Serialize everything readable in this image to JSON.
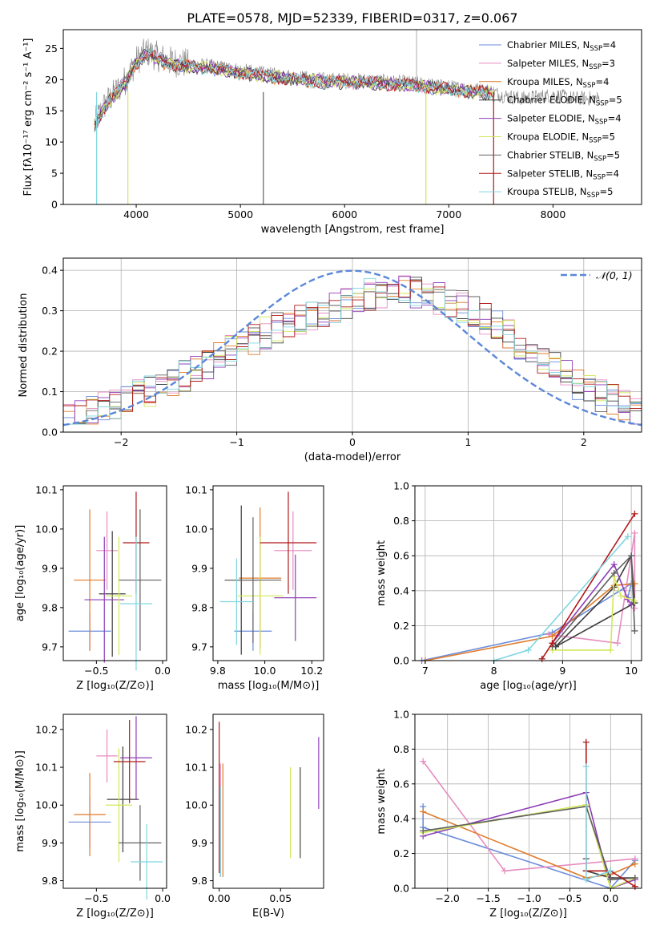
{
  "figure_title": "PLATE=0578, MJD=52339, FIBERID=0317, z=0.067",
  "model_colors": [
    "#6b8cdc",
    "#e68cc0",
    "#e07b2a",
    "#3d3d3d",
    "#8e3fb8",
    "#d2e85a",
    "#606060",
    "#b01818",
    "#7fd6e0"
  ],
  "chart_data": [
    {
      "id": "spectrum",
      "type": "line",
      "title": "PLATE=0578, MJD=52339, FIBERID=0317, z=0.067",
      "xlabel": "wavelength [Angstrom, rest frame]",
      "ylabel": "Flux [fλ10⁻¹⁷ erg cm⁻² s⁻¹ A⁻¹]",
      "xlim": [
        3300,
        8850
      ],
      "ylim": [
        0,
        28
      ],
      "xticks": [
        4000,
        5000,
        6000,
        7000,
        8000
      ],
      "yticks": [
        0,
        5,
        10,
        15,
        20,
        25
      ],
      "grid": false,
      "legend_position": "top-right",
      "observed_color": "#808080",
      "observed_anchors": {
        "x": [
          3600,
          3700,
          3800,
          3900,
          4000,
          4100,
          4300,
          4500,
          4800,
          5000,
          5200,
          5500,
          5800,
          6000,
          6300,
          6600,
          6800,
          7000,
          7200,
          7400,
          7500,
          7700,
          8000,
          8200,
          8450
        ],
        "y": [
          13,
          16,
          18,
          20,
          23,
          24.5,
          23,
          22.5,
          22,
          21.5,
          21,
          20.5,
          20,
          20,
          19.8,
          19.5,
          19.2,
          18.8,
          18.5,
          18.2,
          17.5,
          17,
          17.5,
          17,
          17
        ]
      },
      "series": [
        {
          "name": "Chabrier MILES, N_SSP=4",
          "label_main": "Chabrier MILES, N",
          "label_sub": "SSP",
          "label_tail": "=4",
          "color": "#6b8cdc"
        },
        {
          "name": "Salpeter MILES, N_SSP=3",
          "label_main": "Salpeter MILES, N",
          "label_sub": "SSP",
          "label_tail": "=3",
          "color": "#e68cc0"
        },
        {
          "name": "Kroupa MILES, N_SSP=4",
          "label_main": "Kroupa MILES, N",
          "label_sub": "SSP",
          "label_tail": "=4",
          "color": "#e07b2a"
        },
        {
          "name": "Chabrier ELODIE, N_SSP=5",
          "label_main": "Chabrier ELODIE, N",
          "label_sub": "SSP",
          "label_tail": "=5",
          "color": "#3d3d3d"
        },
        {
          "name": "Salpeter ELODIE, N_SSP=4",
          "label_main": "Salpeter ELODIE, N",
          "label_sub": "SSP",
          "label_tail": "=4",
          "color": "#8e3fb8"
        },
        {
          "name": "Kroupa ELODIE, N_SSP=5",
          "label_main": "Kroupa ELODIE, N",
          "label_sub": "SSP",
          "label_tail": "=5",
          "color": "#d2e85a"
        },
        {
          "name": "Chabrier STELIB, N_SSP=5",
          "label_main": "Chabrier STELIB, N",
          "label_sub": "SSP",
          "label_tail": "=5",
          "color": "#606060"
        },
        {
          "name": "Salpeter STELIB, N_SSP=4",
          "label_main": "Salpeter STELIB, N",
          "label_sub": "SSP",
          "label_tail": "=4",
          "color": "#b01818"
        },
        {
          "name": "Kroupa STELIB, N_SSP=5",
          "label_main": "Kroupa STELIB, N",
          "label_sub": "SSP",
          "label_tail": "=5",
          "color": "#7fd6e0"
        }
      ]
    },
    {
      "id": "residuals",
      "type": "histogram",
      "xlabel": "(data-model)/error",
      "ylabel": "Normed distribution",
      "xlim": [
        -2.5,
        2.5
      ],
      "ylim": [
        0,
        0.43
      ],
      "xticks": [
        -2,
        -1,
        0,
        1,
        2
      ],
      "yticks": [
        0.0,
        0.1,
        0.2,
        0.3,
        0.4
      ],
      "grid": true,
      "bins": {
        "start": -2.5,
        "width": 0.1,
        "count": 50
      },
      "envelope": [
        0.035,
        0.04,
        0.05,
        0.06,
        0.07,
        0.08,
        0.09,
        0.1,
        0.11,
        0.12,
        0.14,
        0.155,
        0.17,
        0.185,
        0.2,
        0.215,
        0.23,
        0.245,
        0.26,
        0.27,
        0.28,
        0.29,
        0.3,
        0.31,
        0.32,
        0.33,
        0.34,
        0.345,
        0.35,
        0.35,
        0.345,
        0.34,
        0.33,
        0.32,
        0.31,
        0.3,
        0.28,
        0.26,
        0.24,
        0.22,
        0.2,
        0.18,
        0.16,
        0.14,
        0.12,
        0.1,
        0.09,
        0.08,
        0.07,
        0.055
      ],
      "legend": {
        "position": "top-right",
        "label": "𝒩(0, 1)",
        "color": "#5b87d8"
      },
      "normal_curve": {
        "mean": 0,
        "sigma": 1,
        "color": "#5b87d8"
      }
    },
    {
      "id": "age_vs_Z",
      "type": "errorbar",
      "xlabel": "Z [log₁₀(Z/Z⊙)]",
      "ylabel": "age  [log₁₀(age/yr)]",
      "xlim": [
        -0.75,
        0.03
      ],
      "ylim": [
        9.665,
        10.11
      ],
      "xticks": [
        -0.5,
        0.0
      ],
      "yticks": [
        9.7,
        9.8,
        9.9,
        10.0,
        10.1
      ],
      "points": [
        {
          "x": -0.55,
          "y": 9.74,
          "xerr": 0.16,
          "yerr": 0.05
        },
        {
          "x": -0.42,
          "y": 9.945,
          "xerr": 0.08,
          "yerr": 0.1
        },
        {
          "x": -0.55,
          "y": 9.87,
          "xerr": 0.12,
          "yerr": 0.18
        },
        {
          "x": -0.38,
          "y": 9.835,
          "xerr": 0.1,
          "yerr": 0.16
        },
        {
          "x": -0.44,
          "y": 9.82,
          "xerr": 0.15,
          "yerr": 0.16
        },
        {
          "x": -0.33,
          "y": 9.83,
          "xerr": 0.1,
          "yerr": 0.15
        },
        {
          "x": -0.17,
          "y": 9.87,
          "xerr": 0.16,
          "yerr": 0.18
        },
        {
          "x": -0.2,
          "y": 9.965,
          "xerr": 0.1,
          "yerr": 0.13
        },
        {
          "x": -0.2,
          "y": 9.81,
          "xerr": 0.12,
          "yerr": 0.17
        }
      ]
    },
    {
      "id": "age_vs_mass",
      "type": "errorbar",
      "xlabel": "mass [log₁₀(M/M⊙)]",
      "ylabel": "",
      "xlim": [
        9.78,
        10.25
      ],
      "ylim": [
        9.665,
        10.11
      ],
      "xticks": [
        9.8,
        10.0,
        10.2
      ],
      "yticks": [
        9.7,
        9.8,
        9.9,
        10.0,
        10.1
      ],
      "points": [
        {
          "x": 9.95,
          "y": 9.74,
          "xerr": 0.08,
          "yerr": 0.05
        },
        {
          "x": 10.12,
          "y": 9.945,
          "xerr": 0.08,
          "yerr": 0.1
        },
        {
          "x": 9.98,
          "y": 9.875,
          "xerr": 0.09,
          "yerr": 0.18
        },
        {
          "x": 9.9,
          "y": 9.87,
          "xerr": 0.07,
          "yerr": 0.19
        },
        {
          "x": 10.13,
          "y": 9.825,
          "xerr": 0.09,
          "yerr": 0.11
        },
        {
          "x": 9.98,
          "y": 9.83,
          "xerr": 0.1,
          "yerr": 0.15
        },
        {
          "x": 9.95,
          "y": 9.87,
          "xerr": 0.12,
          "yerr": 0.16
        },
        {
          "x": 10.1,
          "y": 9.965,
          "xerr": 0.12,
          "yerr": 0.13
        },
        {
          "x": 9.88,
          "y": 9.815,
          "xerr": 0.07,
          "yerr": 0.11
        }
      ]
    },
    {
      "id": "weight_vs_age",
      "type": "line",
      "xlabel": "age  [log₁₀(age/yr)]",
      "ylabel": "mass weight",
      "xlim": [
        6.85,
        10.15
      ],
      "ylim": [
        0,
        1
      ],
      "xticks": [
        7,
        8,
        9,
        10
      ],
      "yticks": [
        0.0,
        0.2,
        0.4,
        0.6,
        0.8,
        1.0
      ],
      "grid": true,
      "series": [
        {
          "x": [
            6.95,
            8.85,
            10.0,
            9.95
          ],
          "y": [
            0.0,
            0.16,
            0.44,
            0.36
          ]
        },
        {
          "x": [
            8.8,
            9.8,
            10.05,
            10.05
          ],
          "y": [
            0.15,
            0.1,
            0.73,
            0.3
          ]
        },
        {
          "x": [
            7.0,
            8.85,
            9.75,
            10.05
          ],
          "y": [
            0.0,
            0.14,
            0.43,
            0.44
          ]
        },
        {
          "x": [
            8.9,
            9.75,
            10.0,
            10.05,
            8.9
          ],
          "y": [
            0.08,
            0.42,
            0.6,
            0.33,
            0.08
          ]
        },
        {
          "x": [
            8.85,
            9.75,
            9.95,
            10.0
          ],
          "y": [
            0.1,
            0.55,
            0.35,
            0.32
          ]
        },
        {
          "x": [
            8.85,
            9.7,
            9.75,
            9.85,
            10.05
          ],
          "y": [
            0.06,
            0.06,
            0.48,
            0.37,
            0.34
          ]
        },
        {
          "x": [
            8.85,
            9.75,
            10.0,
            10.05
          ],
          "y": [
            0.08,
            0.5,
            0.6,
            0.17
          ]
        },
        {
          "x": [
            8.7,
            8.85,
            10.05
          ],
          "y": [
            0.01,
            0.1,
            0.84
          ]
        },
        {
          "x": [
            8.0,
            8.5,
            9.95
          ],
          "y": [
            0.0,
            0.06,
            0.71
          ]
        }
      ]
    },
    {
      "id": "mass_vs_Z",
      "type": "errorbar",
      "xlabel": "Z [log₁₀(Z/Z⊙)]",
      "ylabel": "mass [log₁₀(M/M⊙)]",
      "xlim": [
        -0.75,
        0.03
      ],
      "ylim": [
        9.78,
        10.24
      ],
      "xticks": [
        -0.5,
        0.0
      ],
      "yticks": [
        9.8,
        9.9,
        10.0,
        10.1,
        10.2
      ],
      "points": [
        {
          "x": -0.55,
          "y": 9.955,
          "xerr": 0.16,
          "yerr": 0.07
        },
        {
          "x": -0.42,
          "y": 10.13,
          "xerr": 0.08,
          "yerr": 0.07
        },
        {
          "x": -0.55,
          "y": 9.975,
          "xerr": 0.12,
          "yerr": 0.11
        },
        {
          "x": -0.3,
          "y": 10.015,
          "xerr": 0.12,
          "yerr": 0.14
        },
        {
          "x": -0.2,
          "y": 10.125,
          "xerr": 0.12,
          "yerr": 0.11
        },
        {
          "x": -0.33,
          "y": 10.0,
          "xerr": 0.1,
          "yerr": 0.15
        },
        {
          "x": -0.17,
          "y": 9.9,
          "xerr": 0.16,
          "yerr": 0.1
        },
        {
          "x": -0.25,
          "y": 10.115,
          "xerr": 0.12,
          "yerr": 0.11
        },
        {
          "x": -0.12,
          "y": 9.85,
          "xerr": 0.12,
          "yerr": 0.1
        }
      ]
    },
    {
      "id": "mass_vs_ebv",
      "type": "errorbar",
      "xlabel": "E(B-V)",
      "ylabel": "",
      "xlim": [
        -0.005,
        0.085
      ],
      "ylim": [
        9.78,
        10.24
      ],
      "xticks": [
        0.0,
        0.05
      ],
      "yticks": [
        9.8,
        9.9,
        10.0,
        10.1,
        10.2
      ],
      "points": [
        {
          "x": 0.001,
          "y": 9.93,
          "xerr": 0,
          "yerr": 0.12
        },
        {
          "x": 0.001,
          "y": 10.0,
          "xerr": 0,
          "yerr": 0.11
        },
        {
          "x": 0.003,
          "y": 9.96,
          "xerr": 0,
          "yerr": 0.15
        },
        {
          "x": 0.066,
          "y": 9.98,
          "xerr": 0,
          "yerr": 0.12
        },
        {
          "x": 0.081,
          "y": 10.085,
          "xerr": 0,
          "yerr": 0.095
        },
        {
          "x": 0.058,
          "y": 9.98,
          "xerr": 0,
          "yerr": 0.12
        },
        {
          "x": 0.066,
          "y": 9.98,
          "xerr": 0,
          "yerr": 0.12
        },
        {
          "x": 0.0,
          "y": 10.02,
          "xerr": 0,
          "yerr": 0.2
        },
        {
          "x": 0.001,
          "y": 9.93,
          "xerr": 0,
          "yerr": 0.12
        }
      ]
    },
    {
      "id": "weight_vs_Z",
      "type": "line",
      "xlabel": "Z [log₁₀(Z/Z⊙)]",
      "ylabel": "mass weight",
      "xlim": [
        -2.4,
        0.38
      ],
      "ylim": [
        0,
        1
      ],
      "xticks": [
        -2.0,
        -1.5,
        -1.0,
        -0.5,
        0.0
      ],
      "yticks": [
        0.0,
        0.2,
        0.4,
        0.6,
        0.8,
        1.0
      ],
      "grid": true,
      "series": [
        {
          "x": [
            -2.3,
            -2.3,
            0.0,
            0.3
          ],
          "y": [
            0.47,
            0.35,
            0.0,
            0.16
          ]
        },
        {
          "x": [
            -2.3,
            -1.3,
            0.3
          ],
          "y": [
            0.73,
            0.1,
            0.17
          ]
        },
        {
          "x": [
            -2.3,
            -0.3,
            0.0,
            0.3
          ],
          "y": [
            0.44,
            0.06,
            0.08,
            0.14
          ]
        },
        {
          "x": [
            -0.3,
            -0.3,
            0.0,
            0.3
          ],
          "y": [
            0.17,
            0.1,
            0.06,
            0.06
          ]
        },
        {
          "x": [
            -2.3,
            -0.3,
            0.0,
            0.3
          ],
          "y": [
            0.3,
            0.55,
            0.0,
            0.05
          ]
        },
        {
          "x": [
            -2.3,
            -0.3,
            0.0,
            0.3
          ],
          "y": [
            0.32,
            0.48,
            0.0,
            0.06
          ]
        },
        {
          "x": [
            -2.3,
            -0.3,
            0.0,
            0.3
          ],
          "y": [
            0.33,
            0.47,
            0.05,
            0.06
          ]
        },
        {
          "x": [
            -0.3,
            -0.3,
            -0.3,
            0.0,
            0.3
          ],
          "y": [
            0.84,
            0.1,
            0.1,
            0.1,
            0.01
          ]
        },
        {
          "x": [
            -0.3,
            -0.3,
            0.0
          ],
          "y": [
            0.7,
            0.05,
            0.1
          ]
        }
      ]
    }
  ]
}
